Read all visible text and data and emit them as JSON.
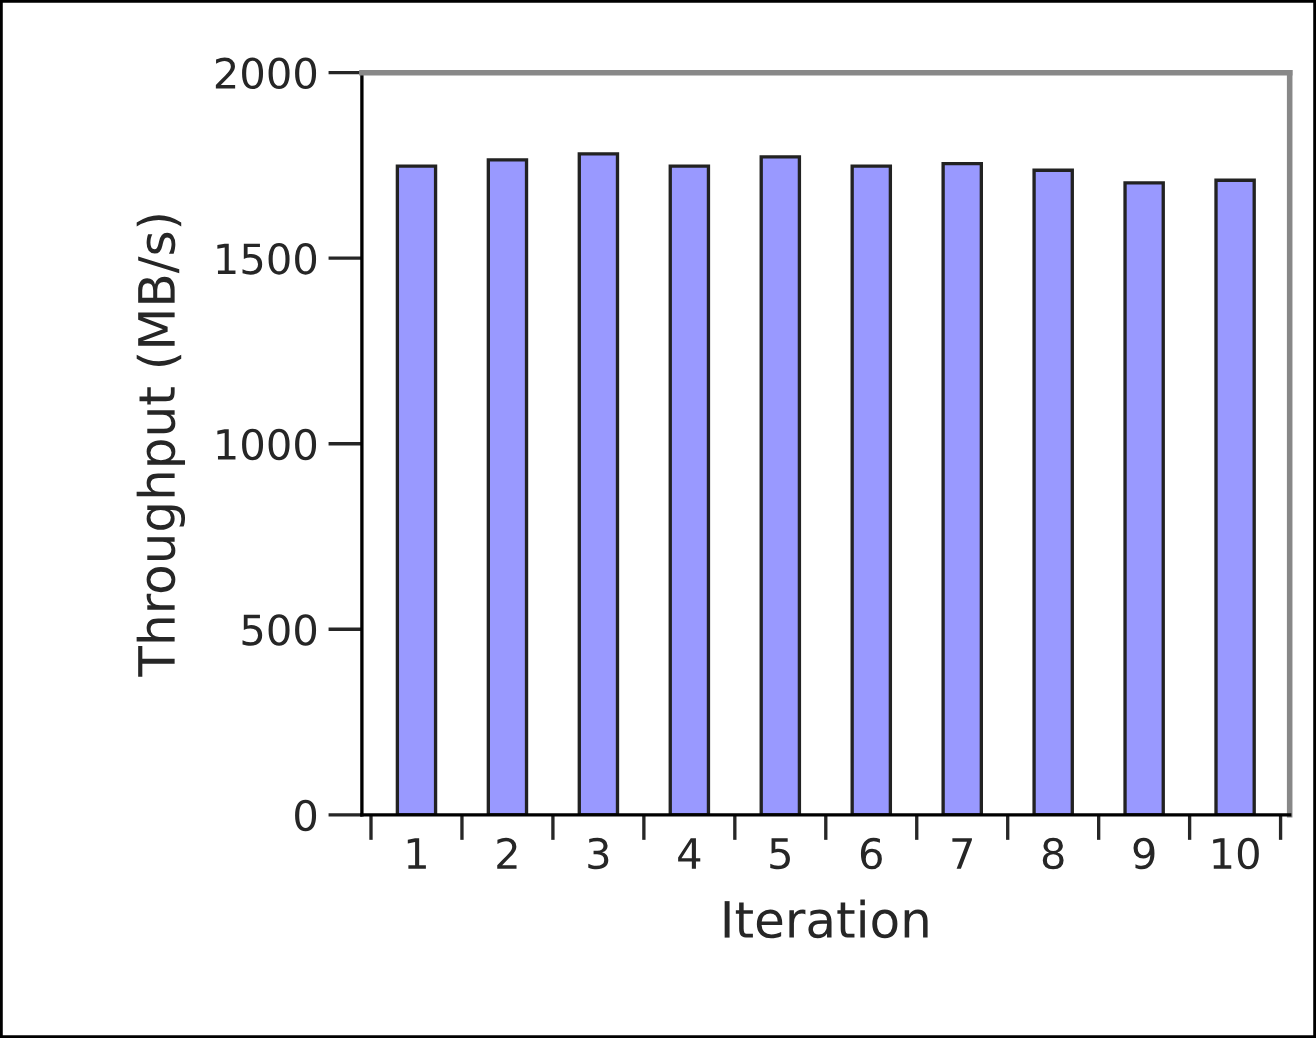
{
  "chart_data": {
    "type": "bar",
    "xlabel": "Iteration",
    "ylabel": "Throughput (MB/s)",
    "categories": [
      "1",
      "2",
      "3",
      "4",
      "5",
      "6",
      "7",
      "8",
      "9",
      "10"
    ],
    "values": [
      1748,
      1765,
      1781,
      1748,
      1773,
      1748,
      1755,
      1737,
      1703,
      1710
    ],
    "color": "#9999ff",
    "ylim": [
      0,
      2000
    ],
    "yticks": [
      0,
      500,
      1000,
      1500,
      2000
    ],
    "grid": false,
    "legend": false
  }
}
